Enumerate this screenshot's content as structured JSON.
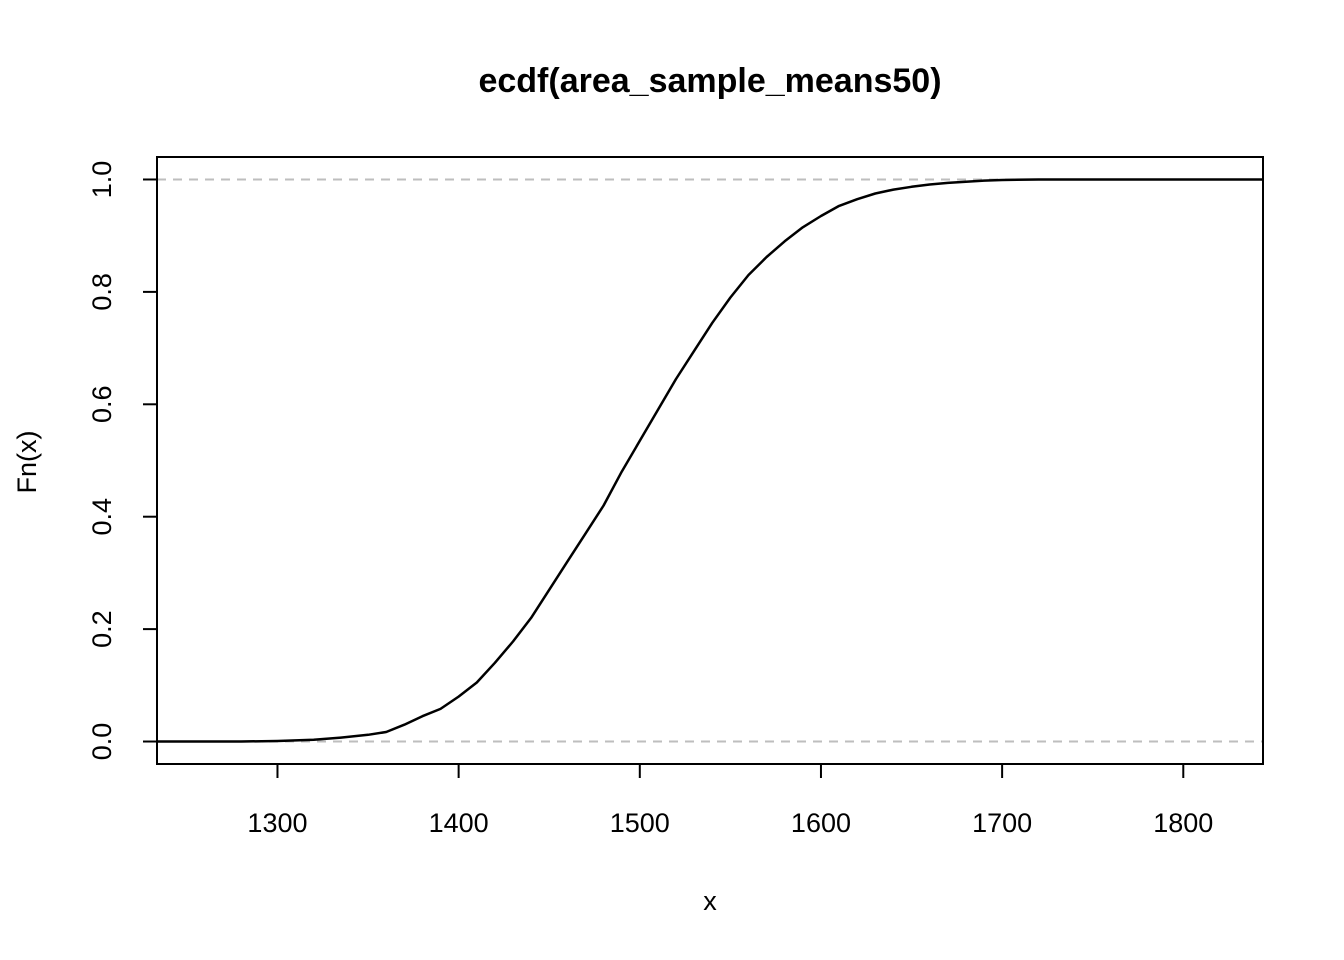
{
  "chart_data": {
    "type": "line",
    "title": "ecdf(area_sample_means50)",
    "xlabel": "x",
    "ylabel": "Fn(x)",
    "xlim": [
      1233.5,
      1844
    ],
    "ylim": [
      -0.04,
      1.04
    ],
    "x_ticks": [
      1300,
      1400,
      1500,
      1600,
      1700,
      1800
    ],
    "y_ticks": [
      0.0,
      0.2,
      0.4,
      0.6,
      0.8,
      1.0
    ],
    "x_tick_labels": [
      "1300",
      "1400",
      "1500",
      "1600",
      "1700",
      "1800"
    ],
    "y_tick_labels": [
      "0.0",
      "0.2",
      "0.4",
      "0.6",
      "0.8",
      "1.0"
    ],
    "reference_lines": [
      0.0,
      1.0
    ],
    "grid": false,
    "series": [
      {
        "x": [
          1233.5,
          1280,
          1300,
          1320,
          1335,
          1350,
          1360,
          1370,
          1380,
          1390,
          1400,
          1410,
          1420,
          1430,
          1440,
          1450,
          1460,
          1470,
          1480,
          1490,
          1500,
          1510,
          1520,
          1530,
          1540,
          1550,
          1560,
          1570,
          1580,
          1590,
          1600,
          1610,
          1620,
          1630,
          1640,
          1650,
          1660,
          1670,
          1680,
          1690,
          1700,
          1720,
          1750,
          1844
        ],
        "y": [
          0.0,
          0.0,
          0.001,
          0.003,
          0.007,
          0.012,
          0.017,
          0.03,
          0.045,
          0.058,
          0.08,
          0.105,
          0.14,
          0.178,
          0.22,
          0.27,
          0.32,
          0.37,
          0.42,
          0.48,
          0.535,
          0.59,
          0.645,
          0.695,
          0.745,
          0.79,
          0.83,
          0.862,
          0.89,
          0.915,
          0.935,
          0.953,
          0.965,
          0.975,
          0.982,
          0.987,
          0.991,
          0.994,
          0.996,
          0.998,
          0.999,
          1.0,
          1.0,
          1.0
        ]
      }
    ]
  }
}
